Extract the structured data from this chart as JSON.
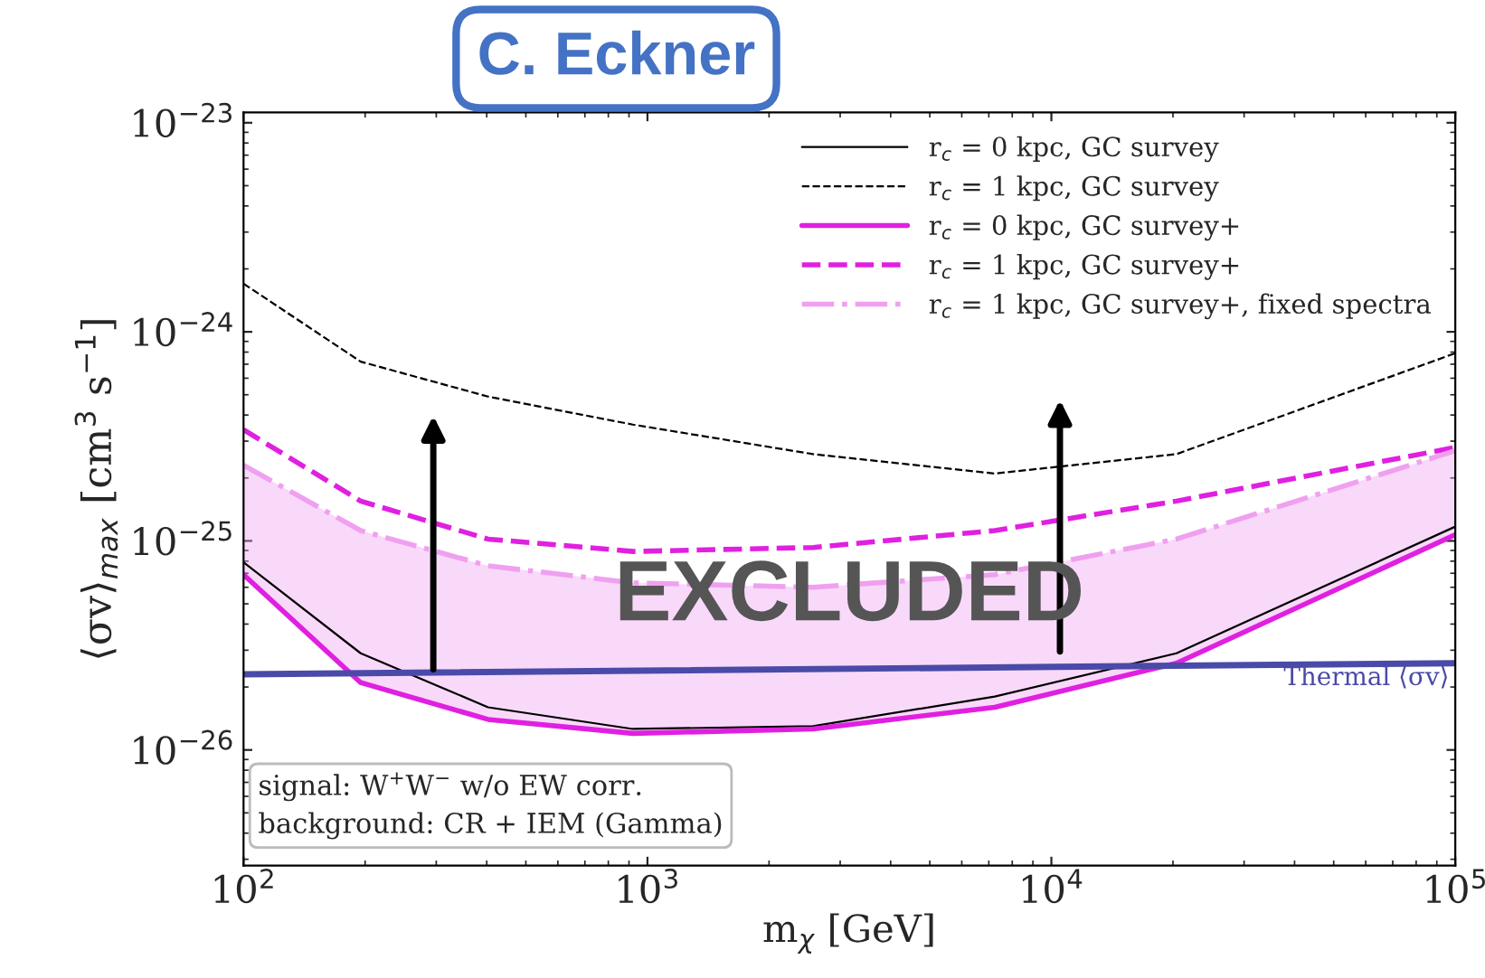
{
  "chart_data": {
    "type": "line",
    "xlabel": "m$_{χ}$ [GeV]",
    "ylabel": "⟨σv⟩$_{max}$ [cm$^{3}$ s$^{−1}$]",
    "log": "xy",
    "legend": "top right",
    "grid": false,
    "xlim": [
      100,
      100000
    ],
    "ylim": [
      2.8e-27,
      1.12e-23
    ],
    "xticks": [
      {
        "value": 100,
        "label": "10$^{2}$"
      },
      {
        "value": 1000,
        "label": "10$^{3}$"
      },
      {
        "value": 10000,
        "label": "10$^{4}$"
      },
      {
        "value": 100000,
        "label": "10$^{5}$"
      }
    ],
    "yticks": [
      {
        "value": 1e-26,
        "label": "10$^{−26}$"
      },
      {
        "value": 1e-25,
        "label": "10$^{−25}$"
      },
      {
        "value": 1e-24,
        "label": "10$^{−24}$"
      },
      {
        "value": 1e-23,
        "label": "10$^{−23}$"
      }
    ],
    "x": [
      100,
      195,
      403,
      920,
      2570,
      7240,
      20400,
      100000
    ],
    "series": [
      {
        "name": "r$_{c}$ = 0 kpc, GC survey",
        "color": "#000000",
        "line_style": "solid",
        "values": [
          7.9e-26,
          2.9e-26,
          1.6e-26,
          1.26e-26,
          1.3e-26,
          1.8e-26,
          2.9e-26,
          1.17e-25
        ]
      },
      {
        "name": "r$_{c}$ = 1 kpc, GC survey",
        "color": "#000000",
        "line_style": "dashed",
        "values": [
          1.7e-24,
          7.2e-25,
          4.9e-25,
          3.6e-25,
          2.6e-25,
          2.1e-25,
          2.6e-25,
          7.9e-25
        ]
      },
      {
        "name": "r$_{c}$ = 0 kpc, GC survey+",
        "color": "#e020e0",
        "line_style": "solid",
        "values": [
          6.9e-26,
          2.1e-26,
          1.4e-26,
          1.2e-26,
          1.26e-26,
          1.6e-26,
          2.6e-26,
          1.07e-25
        ]
      },
      {
        "name": "r$_{c}$ = 1 kpc, GC survey+",
        "color": "#e020e0",
        "line_style": "dashed",
        "values": [
          3.4e-25,
          1.55e-25,
          1.02e-25,
          8.9e-26,
          9.3e-26,
          1.12e-25,
          1.55e-25,
          2.8e-25
        ]
      },
      {
        "name": "r$_{c}$ = 1 kpc, GC survey+, fixed spectra",
        "color": "#f0a0f0",
        "line_style": "dashdot",
        "values": [
          2.3e-25,
          1.12e-25,
          7.6e-26,
          6.3e-26,
          6e-26,
          6.9e-26,
          1.02e-25,
          2.7e-25
        ],
        "lower": [
          6.9e-26,
          2.1e-26,
          1.4e-26,
          1.2e-26,
          1.26e-26,
          1.6e-26,
          2.6e-26,
          1.07e-25
        ],
        "upper": [
          2.3e-25,
          1.12e-25,
          7.6e-26,
          6.3e-26,
          6e-26,
          6.9e-26,
          1.02e-25,
          2.7e-25
        ]
      },
      {
        "color": "#4a4aa8",
        "line_style": "solid",
        "x": [
          100,
          100000
        ],
        "values": [
          2.3e-26,
          2.6e-26
        ]
      }
    ],
    "annotations": [
      "EXCLUDED",
      "signal: W$^{+}$W$^{−}$ w/o EW corr.",
      "background: CR + IEM (Gamma)",
      "C. Eckner",
      "Thermal ⟨σv⟩"
    ]
  }
}
